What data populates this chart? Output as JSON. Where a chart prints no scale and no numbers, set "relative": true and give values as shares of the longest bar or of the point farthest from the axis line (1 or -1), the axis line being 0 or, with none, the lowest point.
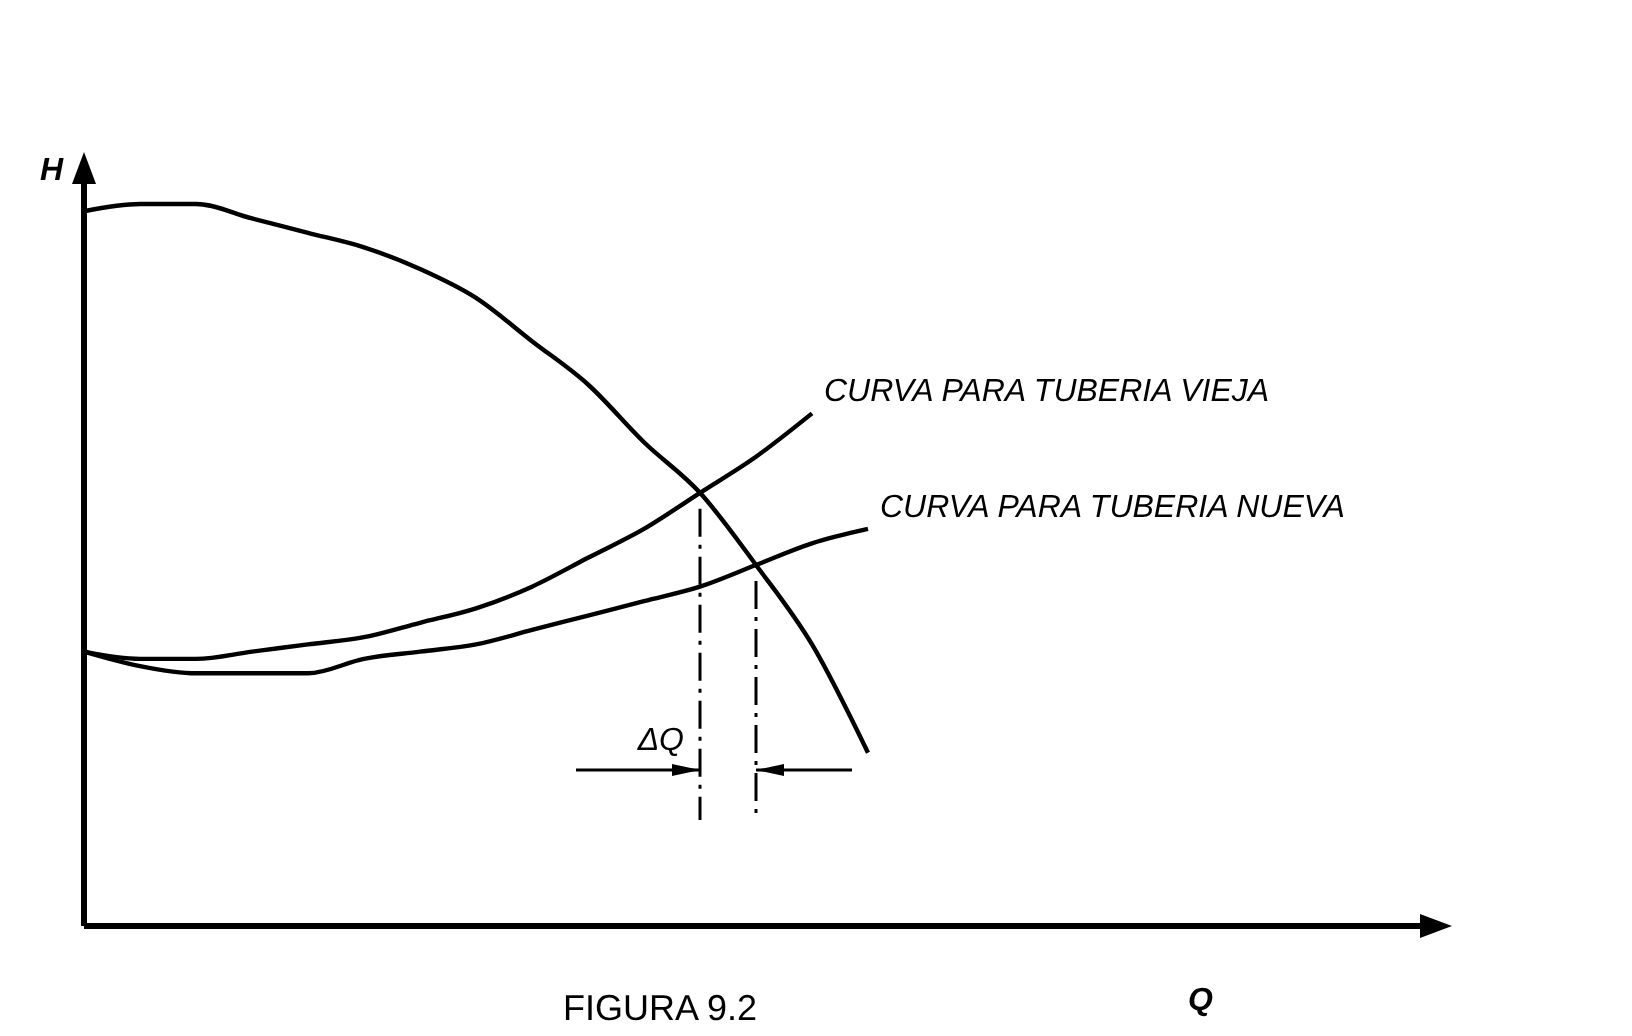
{
  "chart_data": {
    "type": "line",
    "title": "FIGURA 9.2",
    "xlabel": "Q",
    "ylabel": "H",
    "relative": true,
    "marker": "none",
    "line_style": "solid",
    "categories": [
      null,
      null,
      null,
      null,
      null,
      null,
      null,
      null,
      null,
      null,
      null,
      null,
      null,
      null,
      null,
      null,
      null,
      null,
      null,
      null,
      null,
      null,
      null,
      null,
      null
    ],
    "series": [
      {
        "color": "#000000",
        "values": [
          0.99,
          1.0,
          1.0,
          0.98,
          0.96,
          0.94,
          0.91,
          0.87,
          0.81,
          0.75,
          0.67,
          0.6,
          0.5,
          0.39,
          0.24,
          null,
          null,
          null,
          null,
          null,
          null,
          null,
          null,
          null,
          null
        ]
      },
      {
        "name": "CURVA PARA TUBERIA VIEJA",
        "color": "#000000",
        "values": [
          0.38,
          0.37,
          0.37,
          0.38,
          0.39,
          0.4,
          0.42,
          0.44,
          0.47,
          0.51,
          0.55,
          0.6,
          0.65,
          0.71,
          null,
          null,
          null,
          null,
          null,
          null,
          null,
          null,
          null,
          null,
          null
        ]
      },
      {
        "name": "CURVA PARA TUBERIA NUEVA",
        "color": "#000000",
        "values": [
          0.38,
          0.36,
          0.35,
          0.35,
          0.35,
          0.37,
          0.38,
          0.39,
          0.41,
          0.43,
          0.45,
          0.47,
          0.5,
          0.53,
          0.55,
          null,
          null,
          null,
          null,
          null,
          null,
          null,
          null,
          null,
          null
        ]
      }
    ],
    "annotations": [
      "ΔQ"
    ]
  }
}
